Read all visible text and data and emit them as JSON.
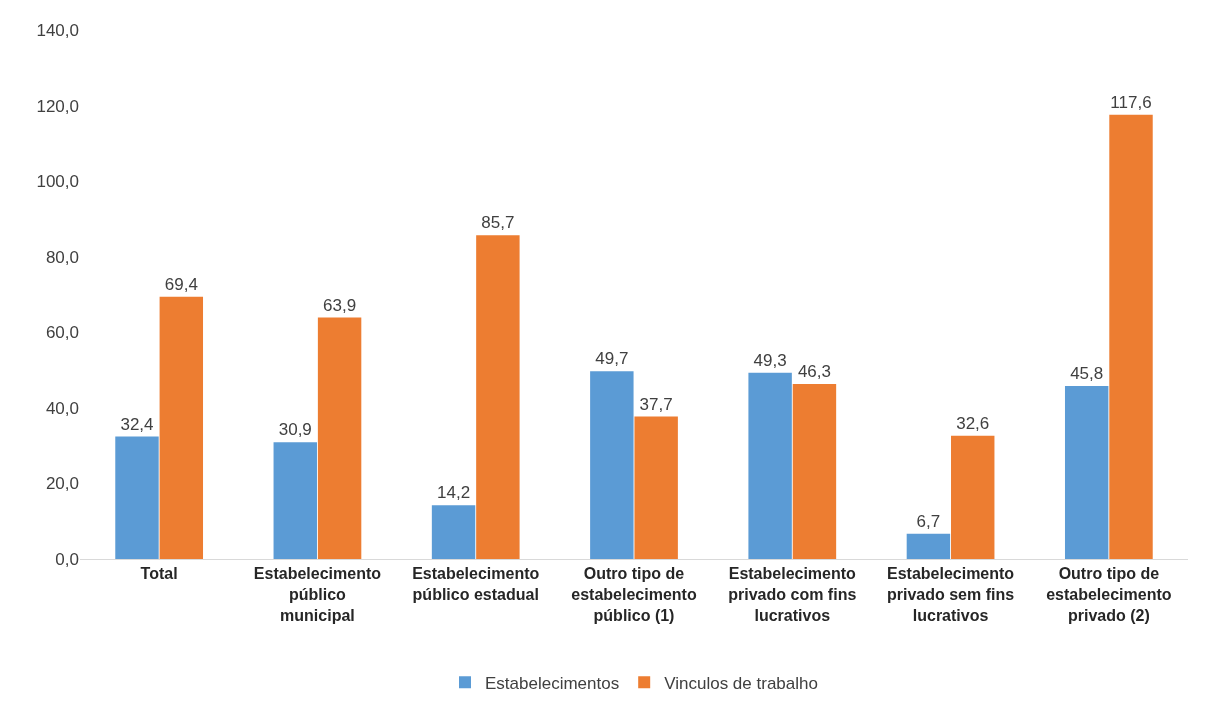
{
  "chart_data": {
    "type": "bar",
    "categories": [
      "Total",
      "Estabelecimento público municipal",
      "Estabelecimento público estadual",
      "Outro tipo de estabelecimento público (1)",
      "Estabelecimento privado com fins lucrativos",
      "Estabelecimento privado sem fins lucrativos",
      "Outro tipo de estabelecimento privado (2)"
    ],
    "series": [
      {
        "name": "Estabelecimentos",
        "color": "#5b9bd5",
        "values": [
          32.4,
          30.9,
          14.2,
          49.7,
          49.3,
          6.7,
          45.8
        ],
        "value_labels": [
          "32,4",
          "30,9",
          "14,2",
          "49,7",
          "49,3",
          "6,7",
          "45,8"
        ]
      },
      {
        "name": "Vinculos de trabalho",
        "color": "#ed7d31",
        "values": [
          69.4,
          63.9,
          85.7,
          37.7,
          46.3,
          32.6,
          117.6
        ],
        "value_labels": [
          "69,4",
          "63,9",
          "85,7",
          "37,7",
          "46,3",
          "32,6",
          "117,6"
        ]
      }
    ],
    "ylim": [
      0,
      140
    ],
    "yticks": [
      {
        "value": 0,
        "label": "0,0"
      },
      {
        "value": 20,
        "label": "20,0"
      },
      {
        "value": 40,
        "label": "40,0"
      },
      {
        "value": 60,
        "label": "60,0"
      },
      {
        "value": 80,
        "label": "80,0"
      },
      {
        "value": 100,
        "label": "100,0"
      },
      {
        "value": 120,
        "label": "120,0"
      },
      {
        "value": 140,
        "label": "140,0"
      }
    ],
    "grid": false,
    "legend": "bottom"
  }
}
